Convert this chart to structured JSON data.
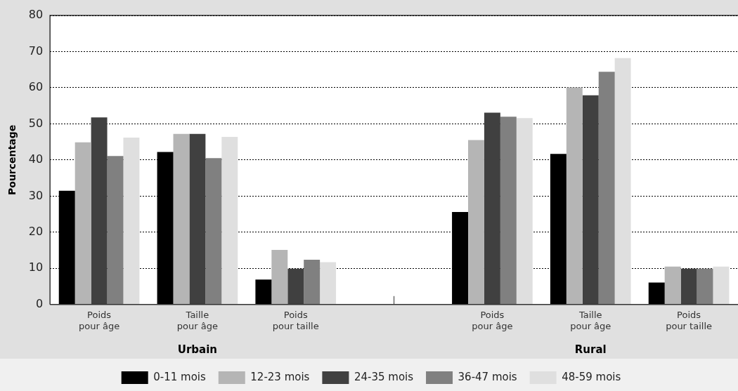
{
  "chart_data": {
    "type": "bar",
    "ylabel": "Pourcentage",
    "categories": [
      "Poids pour âge",
      "Taille pour âge",
      "Poids pour taille",
      null,
      "Poids pour âge",
      "Taille pour âge",
      "Poids pour taille"
    ],
    "series": [
      {
        "name": "0-11 mois",
        "color": "#000000",
        "values": [
          31.5,
          42.2,
          6.9,
          null,
          25.6,
          41.7,
          6.1
        ]
      },
      {
        "name": "12-23 mois",
        "color": "#b5b5b5",
        "values": [
          44.9,
          47.2,
          15.1,
          null,
          45.5,
          60.1,
          10.5
        ]
      },
      {
        "name": "24-35 mois",
        "color": "#404040",
        "values": [
          51.8,
          47.2,
          9.9,
          null,
          53.1,
          57.9,
          9.9
        ]
      },
      {
        "name": "36-47 mois",
        "color": "#808080",
        "values": [
          41.1,
          40.5,
          12.4,
          null,
          52.0,
          64.4,
          9.9
        ]
      },
      {
        "name": "48-59 mois",
        "color": "#dfdfdf",
        "values": [
          46.2,
          46.4,
          11.7,
          null,
          51.6,
          68.2,
          10.5
        ]
      }
    ],
    "ylim": [
      0,
      80
    ],
    "yticks": [
      0,
      10,
      20,
      30,
      40,
      50,
      60,
      70,
      80
    ],
    "grid": "y",
    "legend": "bottom",
    "annotations": [
      "Urbain",
      "Rural"
    ]
  }
}
